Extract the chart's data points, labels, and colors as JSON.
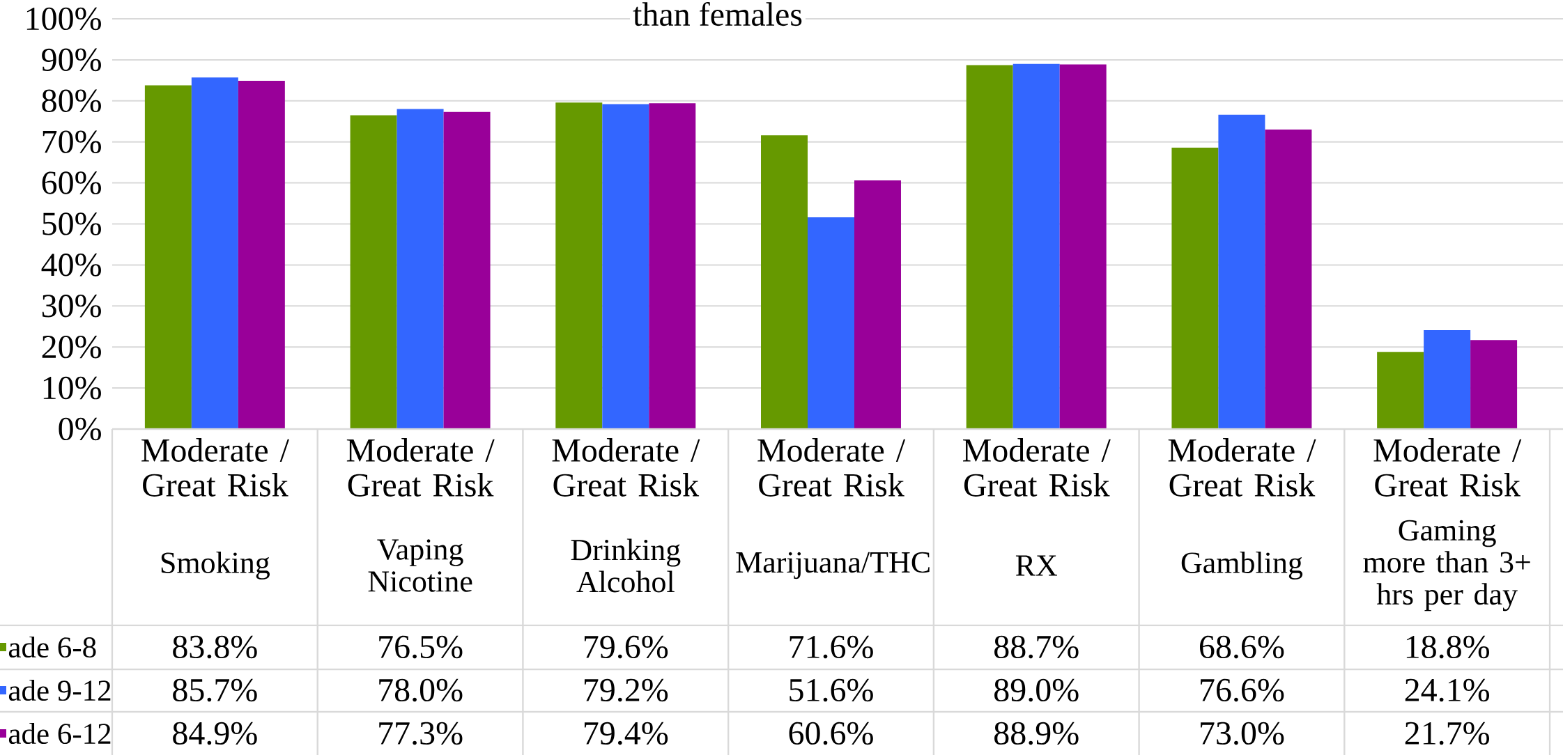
{
  "chart_data": {
    "type": "bar",
    "title": "than females",
    "categories": [
      "Smoking",
      "Vaping Nicotine",
      "Drinking Alcohol",
      "Marijuana/THC",
      "RX",
      "Gambling",
      "Gaming more than 3+ hrs per day"
    ],
    "annotations": [
      "Moderate / Great Risk",
      "Moderate / Great Risk",
      "Moderate / Great Risk",
      "Moderate / Great Risk",
      "Moderate / Great Risk",
      "Moderate / Great Risk",
      "Moderate / Great Risk"
    ],
    "series": [
      {
        "name": "ade 6-8",
        "color": "#669900",
        "values": [
          83.8,
          76.5,
          79.6,
          71.6,
          88.7,
          68.6,
          18.8
        ],
        "value_labels": [
          "83.8%",
          "76.5%",
          "79.6%",
          "71.6%",
          "88.7%",
          "68.6%",
          "18.8%"
        ]
      },
      {
        "name": "ade 9-12",
        "color": "#3366ff",
        "values": [
          85.7,
          78.0,
          79.2,
          51.6,
          89.0,
          76.6,
          24.1
        ],
        "value_labels": [
          "85.7%",
          "78.0%",
          "79.2%",
          "51.6%",
          "89.0%",
          "76.6%",
          "24.1%"
        ]
      },
      {
        "name": "ade 6-12",
        "color": "#990099",
        "values": [
          84.9,
          77.3,
          79.4,
          60.6,
          88.9,
          73.0,
          21.7
        ],
        "value_labels": [
          "84.9%",
          "77.3%",
          "79.4%",
          "60.6%",
          "88.9%",
          "73.0%",
          "21.7%"
        ]
      }
    ],
    "ylim": [
      0,
      100
    ],
    "yticks": [
      {
        "value": 0,
        "label": "0%"
      },
      {
        "value": 10,
        "label": "10%"
      },
      {
        "value": 20,
        "label": "20%"
      },
      {
        "value": 30,
        "label": "30%"
      },
      {
        "value": 40,
        "label": "40%"
      },
      {
        "value": 50,
        "label": "50%"
      },
      {
        "value": 60,
        "label": "60%"
      },
      {
        "value": 70,
        "label": "70%"
      },
      {
        "value": 80,
        "label": "80%"
      },
      {
        "value": 90,
        "label": "90%"
      },
      {
        "value": 100,
        "label": "100%"
      }
    ],
    "grid": "y",
    "legend": "bottom left"
  }
}
